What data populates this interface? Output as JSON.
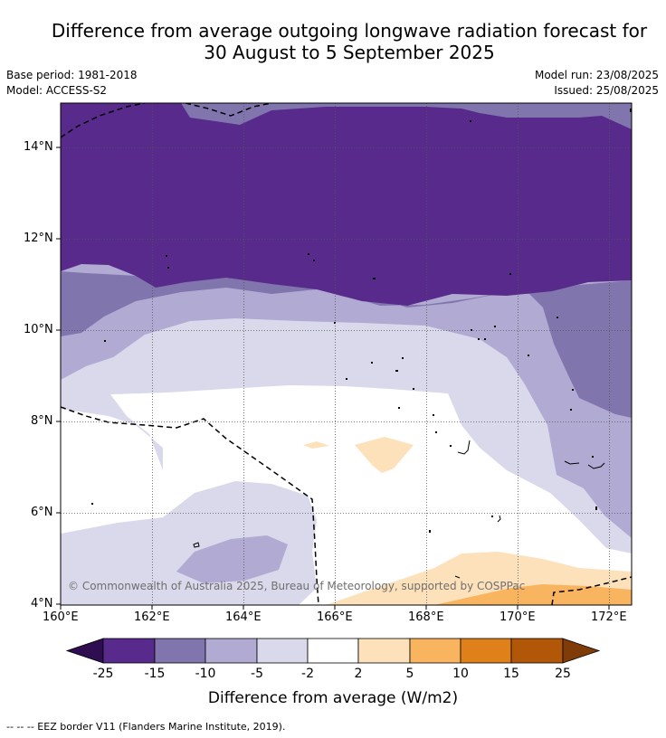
{
  "title_line1": "Difference from average outgoing longwave radiation forecast for",
  "title_line2": "30 August to 5 September 2025",
  "base_period": "Base period: 1981-2018",
  "model": "Model: ACCESS-S2",
  "model_run": "Model run: 23/08/2025",
  "issued": "Issued: 25/08/2025",
  "map": {
    "lon_range": [
      160,
      172.5
    ],
    "lat_range": [
      4,
      15
    ],
    "lon_ticks": [
      "160°E",
      "162°E",
      "164°E",
      "166°E",
      "168°E",
      "170°E",
      "172°E"
    ],
    "lat_ticks": [
      "14°N",
      "12°N",
      "10°N",
      "8°N",
      "6°N",
      "4°N"
    ],
    "copyright": "© Commonwealth of Australia 2025, Bureau of Meteorology, supported by COSPPac"
  },
  "colorbar": {
    "labels": [
      "-25",
      "-15",
      "-10",
      "-5",
      "-2",
      "2",
      "5",
      "10",
      "15",
      "25"
    ],
    "colors": [
      "#582a8c",
      "#8175ad",
      "#b1aad2",
      "#d9d9eb",
      "#ffffff",
      "#fde1ba",
      "#f9b45f",
      "#e0801b",
      "#b25607"
    ],
    "under_color": "#2e0d50",
    "over_color": "#7f3b08",
    "title": "Difference from average (W/m2)"
  },
  "footnote": "--  --  -- EEZ border V11 (Flanders Marine Institute, 2019)."
}
